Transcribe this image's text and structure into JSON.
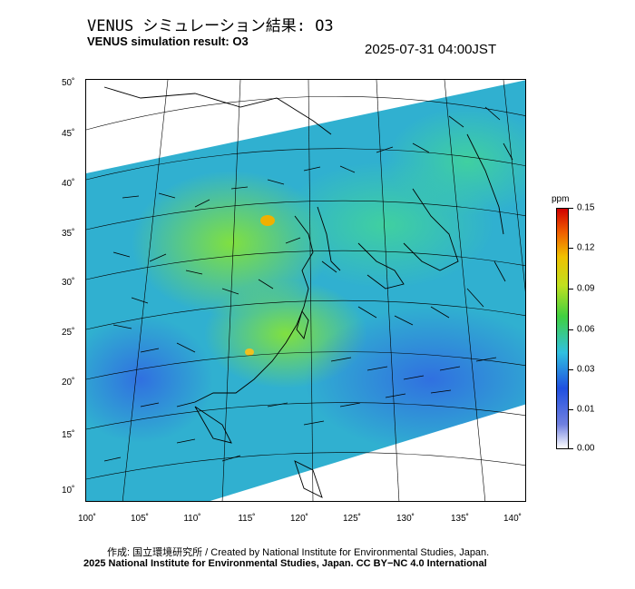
{
  "header": {
    "title_jp": "VENUS シミュレーション結果: O3",
    "title_en": "VENUS simulation result: O3",
    "timestamp": "2025-07-31 04:00JST"
  },
  "map": {
    "lat_labels": [
      "50˚",
      "45˚",
      "40˚",
      "35˚",
      "30˚",
      "25˚",
      "20˚",
      "15˚",
      "10˚"
    ],
    "lon_labels": [
      "100˚",
      "105˚",
      "110˚",
      "115˚",
      "120˚",
      "125˚",
      "130˚",
      "135˚",
      "140˚"
    ],
    "lat_range": [
      9,
      51
    ],
    "lon_range": [
      100,
      141
    ]
  },
  "colorbar": {
    "unit": "ppm",
    "ticks": [
      "0.15",
      "0.12",
      "0.09",
      "0.06",
      "0.03",
      "0.01",
      "0.00"
    ]
  },
  "footer": {
    "credit": "作成: 国立環境研究所 / Created by National Institute for Environmental Studies, Japan.",
    "copyright": "2025 National Institute for Environmental Studies, Japan. CC BY−NC 4.0 International"
  }
}
